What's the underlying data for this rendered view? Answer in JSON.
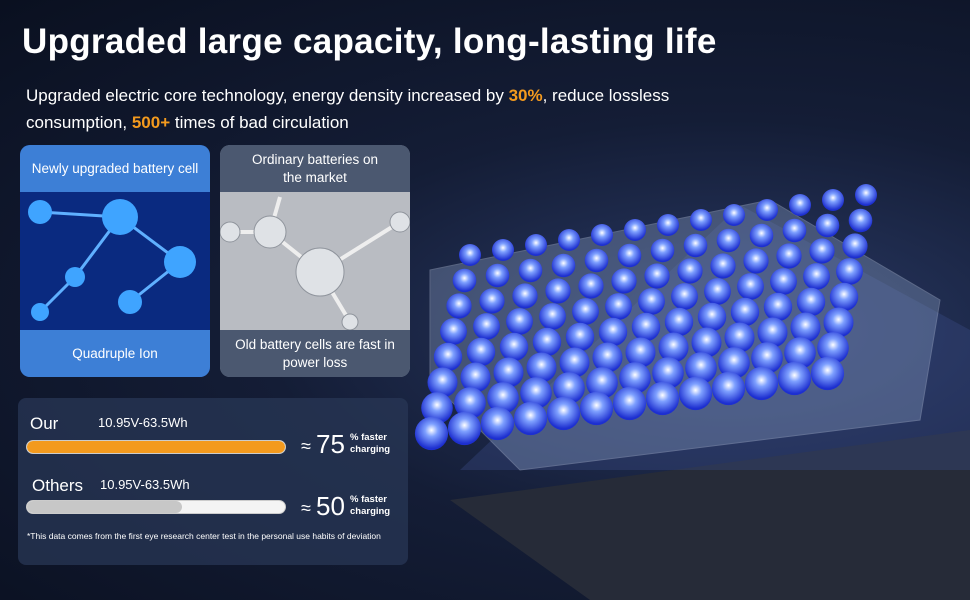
{
  "header": {
    "title": "Upgraded large capacity, long-lasting life",
    "subtitle": [
      {
        "text": "Upgraded electric core technology, energy density increased by ",
        "highlight": false
      },
      {
        "text": "30%",
        "highlight": true
      },
      {
        "text": ", reduce lossless consumption, ",
        "highlight": false
      },
      {
        "text": "500+",
        "highlight": true
      },
      {
        "text": "  times of bad circulation",
        "highlight": false
      }
    ]
  },
  "cards": [
    {
      "top": "Newly upgraded battery cell",
      "bottom": "Quadruple Ion"
    },
    {
      "top": "Ordinary batteries on the market",
      "bottom": "Old battery cells are fast in power loss"
    }
  ],
  "comparison": {
    "rows": [
      {
        "label": "Our",
        "spec": "10.95V-63.5Wh",
        "approx": "≈",
        "value": 75,
        "unit": "% faster",
        "unit2": "charging"
      },
      {
        "label": "Others",
        "spec": "10.95V-63.5Wh",
        "approx": "≈",
        "value": 50,
        "unit": "% faster",
        "unit2": "charging"
      }
    ],
    "footnote": "*This data comes from the first eye research center test in the personal  use habits of deviation"
  }
}
